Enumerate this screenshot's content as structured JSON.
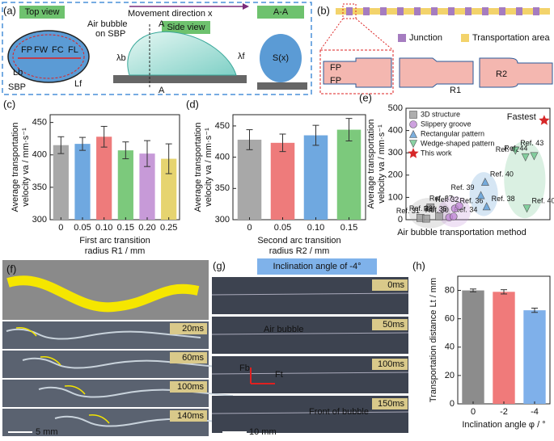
{
  "panel_a": {
    "label": "(a)",
    "top_view": "Top view",
    "side_view": "Side view",
    "section": "A-A",
    "movement": "Movement direction x",
    "bubble": [
      "Air bubble",
      "on SBP"
    ],
    "forces": [
      "FP",
      "FW",
      "FC",
      "FL"
    ],
    "Lb": "Lb",
    "Lf": "Lf",
    "sbp": "SBP",
    "lambda_b": "λb",
    "lambda_f": "λf",
    "A": "A",
    "Sx": "S(x)"
  },
  "panel_b": {
    "label": "(b)",
    "legend": [
      "Junction",
      "Transportation area"
    ],
    "FP": "FP",
    "R1": "R1",
    "R2": "R2"
  },
  "panel_f": {
    "label": "(f)",
    "times": [
      "20ms",
      "60ms",
      "100ms",
      "140ms"
    ],
    "scale": "5 mm"
  },
  "panel_g": {
    "label": "(g)",
    "title": "Inclination angle of -4°",
    "times": [
      "0ms",
      "50ms",
      "100ms",
      "150ms"
    ],
    "air": "Air bubble",
    "front": "Front of bubble",
    "Fb": "Fb",
    "Ft": "Ft",
    "scale": "10 mm"
  },
  "chart_data": [
    {
      "type": "bar",
      "label": "(c)",
      "ylabel": [
        "Average transportation",
        "velocity va / mm·s⁻¹"
      ],
      "xlabel": [
        "First arc transition",
        "radius R1 / mm"
      ],
      "categories": [
        "0",
        "0.05",
        "0.10",
        "0.15",
        "0.20",
        "0.25"
      ],
      "values": [
        415,
        417,
        428,
        407,
        402,
        394
      ],
      "errors": [
        13,
        10,
        16,
        13,
        20,
        23
      ],
      "colors": [
        "#a8a8a8",
        "#6fa8e0",
        "#ee7b7b",
        "#7cc97c",
        "#c79ad8",
        "#e6d470"
      ],
      "ylim": [
        300,
        462
      ],
      "yticks": [
        300,
        350,
        400,
        450
      ]
    },
    {
      "type": "bar",
      "label": "(d)",
      "ylabel": [
        "Average transportation",
        "velocity va / mm·s⁻¹"
      ],
      "xlabel": [
        "Second arc transition",
        "radius R2 / mm"
      ],
      "categories": [
        "0",
        "0.05",
        "0.10",
        "0.15"
      ],
      "values": [
        428,
        423,
        435,
        444
      ],
      "errors": [
        16,
        14,
        16,
        18
      ],
      "colors": [
        "#a8a8a8",
        "#ee7b7b",
        "#6fa8e0",
        "#7cc97c"
      ],
      "ylim": [
        300,
        468
      ],
      "yticks": [
        300,
        350,
        400,
        450
      ]
    },
    {
      "type": "scatter",
      "label": "(e)",
      "ylabel": [
        "Average transportation",
        "velocity va / mm·s⁻¹"
      ],
      "xlabel": [
        "Air bubble transportation method"
      ],
      "annotation": "Fastest",
      "xlim": [
        0,
        10
      ],
      "ylim": [
        0,
        500
      ],
      "yticks": [
        0,
        100,
        200,
        300,
        400,
        500
      ],
      "series": [
        {
          "name": "3D structure",
          "color": "#9a9a9a",
          "marker": "square",
          "x": [
            1.0,
            1.4,
            1.7,
            2.3
          ],
          "values": [
            8,
            5,
            55,
            15
          ],
          "labels": [
            "Ref. 30",
            "Ref. 31",
            "Ref. 32",
            "Ref. 33"
          ]
        },
        {
          "name": "Slippery groove",
          "color": "#c08ad6",
          "marker": "circle",
          "x": [
            3.0,
            3.3,
            3.4,
            3.7
          ],
          "values": [
            10,
            14,
            50,
            62
          ],
          "labels": [
            "Ref. 34",
            "Ref. 35",
            "Ref. 36",
            "Ref. 37"
          ]
        },
        {
          "name": "Rectangular pattern",
          "color": "#5b9bd5",
          "marker": "triangle",
          "x": [
            5.6,
            5.2,
            5.5
          ],
          "values": [
            60,
            110,
            170
          ],
          "labels": [
            "Ref. 38",
            "Ref. 39",
            "Ref. 40"
          ]
        },
        {
          "name": "Wedge-shaped pattern",
          "color": "#6cc58c",
          "marker": "triangle-down",
          "x": [
            8.4,
            8.3,
            7.6,
            8.9
          ],
          "values": [
            50,
            280,
            310,
            285
          ],
          "labels": [
            "Ref. 40",
            "Ref. 42",
            "Ref. 43",
            "Ref. 44"
          ]
        },
        {
          "name": "This work",
          "color": "#d62728",
          "marker": "star",
          "x": [
            9.6
          ],
          "values": [
            445
          ],
          "labels": []
        }
      ]
    },
    {
      "type": "bar",
      "label": "(h)",
      "ylabel": [
        "Transportation distance Lt / mm"
      ],
      "xlabel": [
        "Inclination angle φ / °"
      ],
      "categories": [
        "0",
        "-2",
        "-4"
      ],
      "values": [
        80,
        79,
        66
      ],
      "errors": [
        1,
        1.5,
        1.5
      ],
      "colors": [
        "#8c8c8c",
        "#f07a7a",
        "#7fb0ea"
      ],
      "ylim": [
        0,
        90
      ],
      "yticks": [
        0,
        20,
        40,
        60,
        80
      ]
    }
  ]
}
